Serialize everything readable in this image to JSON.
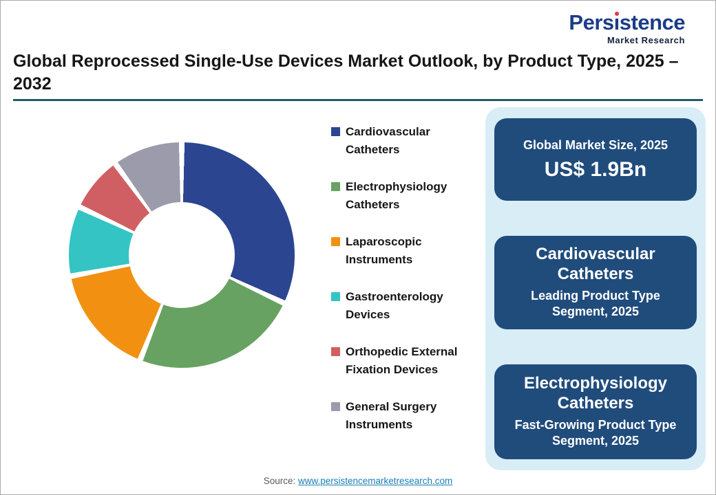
{
  "logo": {
    "part1": "Pers",
    "i_char": "ı",
    "part2": "stence",
    "subtitle": "Market Research"
  },
  "title": "Global Reprocessed Single-Use Devices Market Outlook, by Product Type, 2025 – 2032",
  "chart_data": {
    "type": "pie",
    "donut": true,
    "title": "Global Reprocessed Single-Use Devices Market Outlook, by Product Type, 2025 – 2032",
    "categories": [
      "Cardiovascular Catheters",
      "Electrophysiology Catheters",
      "Laparoscopic Instruments",
      "Gastroenterology Devices",
      "Orthopedic External Fixation Devices",
      "General Surgery Instruments"
    ],
    "values": [
      32,
      24,
      16,
      10,
      8,
      10
    ],
    "colors": [
      "#2b4590",
      "#67a262",
      "#f29111",
      "#35c4c4",
      "#d05f63",
      "#9c9bac"
    ],
    "legend_position": "right",
    "start_angle_deg": 0
  },
  "cards": [
    {
      "title": "Global Market Size, 2025",
      "value": "US$ 1.9Bn"
    },
    {
      "title": "Cardiovascular Catheters",
      "subtitle": "Leading Product Type Segment, 2025"
    },
    {
      "title": "Electrophysiology Catheters",
      "subtitle": "Fast-Growing Product Type Segment, 2025"
    }
  ],
  "source": {
    "label": "Source: ",
    "link_text": "www.persistencemarketresearch.com"
  }
}
